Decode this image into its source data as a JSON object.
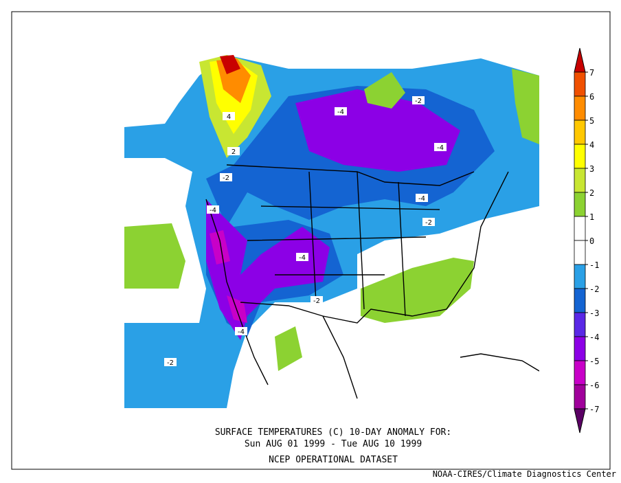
{
  "map": {
    "title_lines": [
      "SURFACE TEMPERATURES (C)   10-DAY ANOMALY FOR:",
      "Sun AUG 01 1999 - Tue AUG 10 1999",
      "NCEP OPERATIONAL DATASET"
    ],
    "credit": "NOAA-CIRES/Climate Diagnostics Center",
    "colorbar": {
      "ticks": [
        7,
        6,
        5,
        4,
        3,
        2,
        1,
        0,
        -1,
        -2,
        -3,
        -4,
        -5,
        -6,
        -7
      ],
      "colors": [
        "#c80000",
        "#f05000",
        "#ff8c00",
        "#ffc800",
        "#ffff00",
        "#c8e632",
        "#8cd232",
        "#ffffff",
        "#ffffff",
        "#2aa0e6",
        "#1464d2",
        "#5a28e6",
        "#8c00e6",
        "#c800c8",
        "#a0009b",
        "#5a0064"
      ]
    },
    "contour_labels": [
      "4",
      "2",
      "-2",
      "-4",
      "-4",
      "-2",
      "-4",
      "-4",
      "-2",
      "-4",
      "-2",
      "-4",
      "-2"
    ]
  }
}
